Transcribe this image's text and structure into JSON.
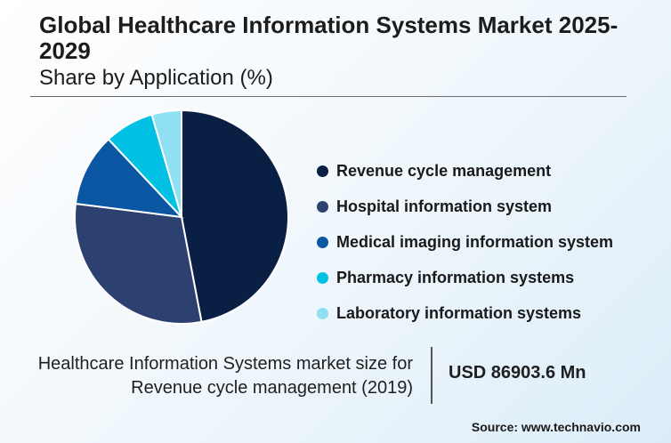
{
  "title": "Global Healthcare Information Systems Market 2025-2029",
  "subtitle": "Share by Application (%)",
  "chart_data": {
    "type": "pie",
    "title": "Global Healthcare Information Systems Market 2025-2029",
    "subtitle": "Share by Application (%)",
    "legend_position": "right",
    "slices": [
      {
        "label": "Revenue cycle management",
        "value": 47,
        "color": "#0a1f44"
      },
      {
        "label": "Hospital information system",
        "value": 30,
        "color": "#2c4170"
      },
      {
        "label": "Medical imaging information system",
        "value": 11,
        "color": "#0b57a4"
      },
      {
        "label": "Pharmacy information systems",
        "value": 7.5,
        "color": "#00c0e4"
      },
      {
        "label": "Laboratory information systems",
        "value": 4.5,
        "color": "#8ee0f2"
      }
    ]
  },
  "info": {
    "label_line1": "Healthcare Information Systems market size for",
    "label_line2": "Revenue cycle management (2019)",
    "value": "USD 86903.6 Mn"
  },
  "source": "Source: www.technavio.com"
}
